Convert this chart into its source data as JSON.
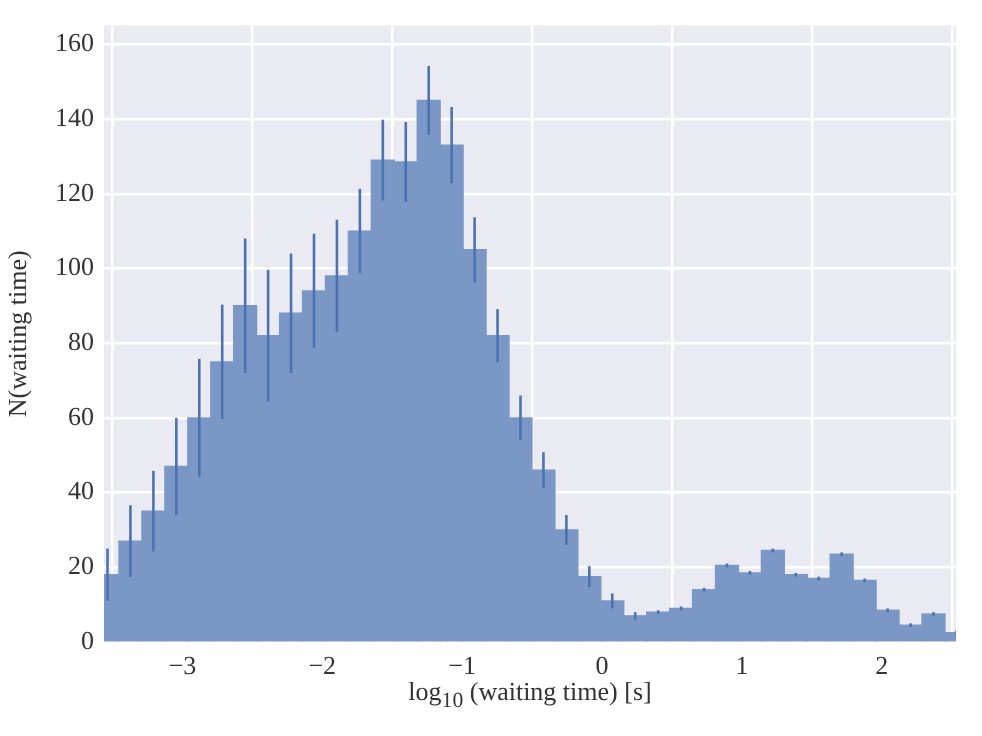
{
  "chart_data": {
    "type": "histogram",
    "xlabel": "log$_{10}$ (waiting time) [s]",
    "ylabel": "N(waiting time)",
    "bins": [
      -3.617,
      -3.453,
      -3.289,
      -3.125,
      -2.961,
      -2.797,
      -2.633,
      -2.469,
      -2.305,
      -2.141,
      -1.977,
      -1.813,
      -1.649,
      -1.485,
      -1.321,
      -1.157,
      -0.993,
      -0.829,
      -0.665,
      -0.501,
      -0.337,
      -0.173,
      -0.009,
      0.155,
      0.319,
      0.483,
      0.647,
      0.811,
      0.975,
      1.139,
      1.303,
      1.467,
      1.631,
      1.795,
      1.959,
      2.123,
      2.287,
      2.451,
      2.615
    ],
    "values": [
      18,
      27,
      35,
      47,
      60,
      75,
      90,
      82,
      88,
      94,
      98,
      110,
      129,
      128.5,
      145,
      133,
      105,
      82,
      60,
      46,
      30,
      17.5,
      11,
      7,
      8,
      9,
      14,
      20.5,
      18.5,
      24.5,
      18,
      17,
      23.5,
      16.5,
      8.5,
      4.5,
      7.5,
      2.5
    ],
    "errors": [
      7,
      9.6,
      10.8,
      13,
      15.8,
      15.3,
      18,
      17.6,
      16,
      15.3,
      15,
      11.3,
      10.8,
      10.7,
      9.2,
      10.2,
      8.7,
      7.1,
      6,
      4.8,
      4,
      2.8,
      2,
      1,
      0.5,
      0.5,
      0.5,
      0.5,
      0.5,
      0.5,
      0.5,
      0.5,
      0.5,
      0.5,
      0.5,
      0.5,
      0.5,
      0.5
    ],
    "color": "#7b97c6",
    "xlim": [
      -3.56,
      2.53
    ],
    "xticks": [
      -3,
      -2,
      -1,
      0,
      1,
      2
    ],
    "ylim": [
      0,
      165
    ],
    "yticks": [
      0,
      20,
      40,
      60,
      80,
      100,
      120,
      140,
      160
    ],
    "grid": true
  }
}
